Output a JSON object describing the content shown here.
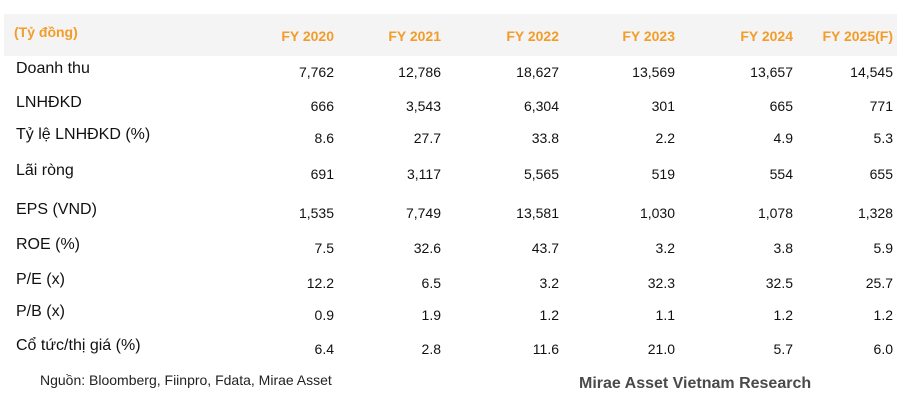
{
  "header": {
    "unit": "(Tỷ đồng)",
    "years": [
      "FY 2020",
      "FY 2021",
      "FY 2022",
      "FY 2023",
      "FY 2024",
      "FY 2025(F)"
    ]
  },
  "rows": [
    {
      "label": "Doanh thu",
      "values": [
        "7,762",
        "12,786",
        "18,627",
        "13,569",
        "13,657",
        "14,545"
      ]
    },
    {
      "label": "LNHĐKD",
      "values": [
        "666",
        "3,543",
        "6,304",
        "301",
        "665",
        "771"
      ]
    },
    {
      "label": "Tỷ lệ LNHĐKD (%)",
      "values": [
        "8.6",
        "27.7",
        "33.8",
        "2.2",
        "4.9",
        "5.3"
      ]
    },
    {
      "label": "Lãi ròng",
      "values": [
        "691",
        "3,117",
        "5,565",
        "519",
        "554",
        "655"
      ]
    },
    {
      "label": "EPS (VND)",
      "values": [
        "1,535",
        "7,749",
        "13,581",
        "1,030",
        "1,078",
        "1,328"
      ]
    },
    {
      "label": "ROE (%)",
      "values": [
        "7.5",
        "32.6",
        "43.7",
        "3.2",
        "3.8",
        "5.9"
      ]
    },
    {
      "label": "P/E (x)",
      "values": [
        "12.2",
        "6.5",
        "3.2",
        "32.3",
        "32.5",
        "25.7"
      ]
    },
    {
      "label": "P/B (x)",
      "values": [
        "0.9",
        "1.9",
        "1.2",
        "1.1",
        "1.2",
        "1.2"
      ]
    },
    {
      "label": "Cổ tức/thị giá (%)",
      "values": [
        "6.4",
        "2.8",
        "11.6",
        "21.0",
        "5.7",
        "6.0"
      ]
    }
  ],
  "footer": {
    "source": "Nguồn: Bloomberg, Fiinpro, Fdata, Mirae Asset",
    "brand": "Mirae Asset Vietnam Research"
  }
}
